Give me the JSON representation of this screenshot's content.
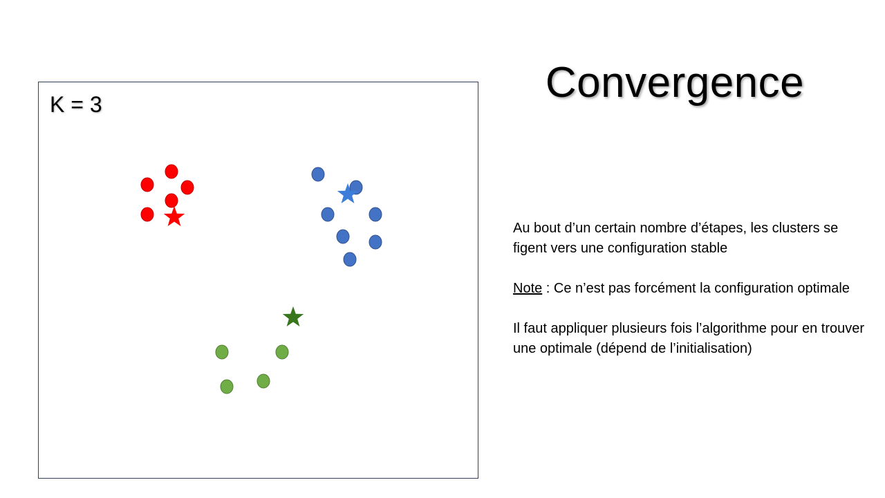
{
  "slide": {
    "title": "Convergence",
    "k_label": "K = 3"
  },
  "text": {
    "para1": "Au bout d’un certain nombre d’étapes, les clusters se figent vers une configuration stable",
    "note_label": "Note",
    "note_text": " : Ce n’est pas forcément la configuration optimale",
    "para3": "Il faut appliquer plusieurs fois l’algorithme pour en trouver une optimale (dépend de l’initialisation)"
  },
  "chart_data": {
    "type": "scatter",
    "clusters": [
      {
        "color": "#ff0000",
        "stroke": "#c00000",
        "points": [
          [
            192,
            129
          ],
          [
            157,
            148
          ],
          [
            215,
            152
          ],
          [
            192,
            171
          ],
          [
            157,
            191
          ]
        ],
        "centroid": [
          196,
          195
        ]
      },
      {
        "color": "#4472c4",
        "stroke": "#2f528f",
        "points": [
          [
            404,
            133
          ],
          [
            459,
            152
          ],
          [
            418,
            191
          ],
          [
            487,
            191
          ],
          [
            440,
            223
          ],
          [
            487,
            231
          ],
          [
            450,
            256
          ]
        ],
        "centroid": [
          447,
          162
        ]
      },
      {
        "color": "#70ad47",
        "stroke": "#507e32",
        "points": [
          [
            265,
            390
          ],
          [
            352,
            390
          ],
          [
            325,
            432
          ],
          [
            272,
            440
          ]
        ],
        "centroid": [
          368,
          340
        ]
      }
    ],
    "centroid_colors": [
      "#ff0000",
      "#3c7dd9",
      "#38761d"
    ]
  }
}
